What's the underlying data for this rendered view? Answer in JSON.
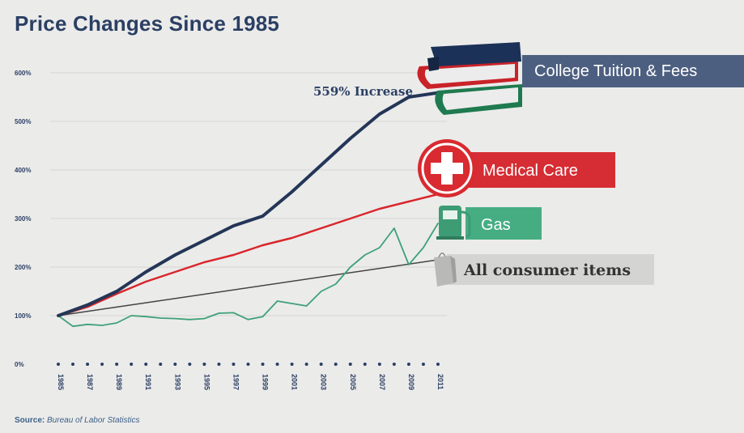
{
  "chart_data": {
    "type": "line",
    "title": "Price Changes Since 1985",
    "source_label": "Source:",
    "source_text": "Bureau of Labor Statistics",
    "y_ticks": [
      "0%",
      "100%",
      "200%",
      "300%",
      "400%",
      "500%",
      "600%"
    ],
    "ylim": [
      0,
      600
    ],
    "x_tick_labels": [
      "1985",
      "1987",
      "1989",
      "1991",
      "1993",
      "1995",
      "1997",
      "1999",
      "2001",
      "2003",
      "2005",
      "2007",
      "2009",
      "2011"
    ],
    "xlim": [
      1985,
      2011.5
    ],
    "annotation": "559% Increase",
    "series": [
      {
        "name": "College Tuition & Fees",
        "color": "#243657",
        "label_bg": "#4a5d7e",
        "icon": "books-icon",
        "x": [
          1985,
          1987,
          1989,
          1991,
          1993,
          1995,
          1997,
          1999,
          2001,
          2003,
          2005,
          2007,
          2009,
          2011
        ],
        "values": [
          100,
          122,
          150,
          190,
          225,
          255,
          285,
          305,
          355,
          410,
          465,
          515,
          550,
          559
        ]
      },
      {
        "name": "Medical Care",
        "color": "#d8262b",
        "label_bg": "#d52d33",
        "icon": "medical-cross-icon",
        "x": [
          1985,
          1987,
          1989,
          1991,
          1993,
          1995,
          1997,
          1999,
          2001,
          2003,
          2005,
          2007,
          2009,
          2011
        ],
        "values": [
          100,
          118,
          145,
          170,
          190,
          210,
          225,
          245,
          260,
          280,
          300,
          320,
          335,
          350
        ]
      },
      {
        "name": "Gas",
        "color": "#3ea178",
        "label_bg": "#44ad82",
        "icon": "gas-pump-icon",
        "x": [
          1985,
          1986,
          1987,
          1988,
          1989,
          1990,
          1991,
          1992,
          1993,
          1994,
          1995,
          1996,
          1997,
          1998,
          1999,
          2000,
          2001,
          2002,
          2003,
          2004,
          2005,
          2006,
          2007,
          2008,
          2009,
          2010,
          2011
        ],
        "values": [
          100,
          78,
          82,
          80,
          85,
          100,
          98,
          95,
          94,
          92,
          94,
          105,
          106,
          92,
          98,
          130,
          125,
          120,
          150,
          165,
          200,
          225,
          240,
          280,
          205,
          240,
          290
        ]
      },
      {
        "name": "All consumer items",
        "color": "#444444",
        "label_bg": "#d2d2d0",
        "icon": "shopping-bag-icon",
        "x": [
          1985,
          2011
        ],
        "values": [
          100,
          215
        ]
      }
    ]
  }
}
